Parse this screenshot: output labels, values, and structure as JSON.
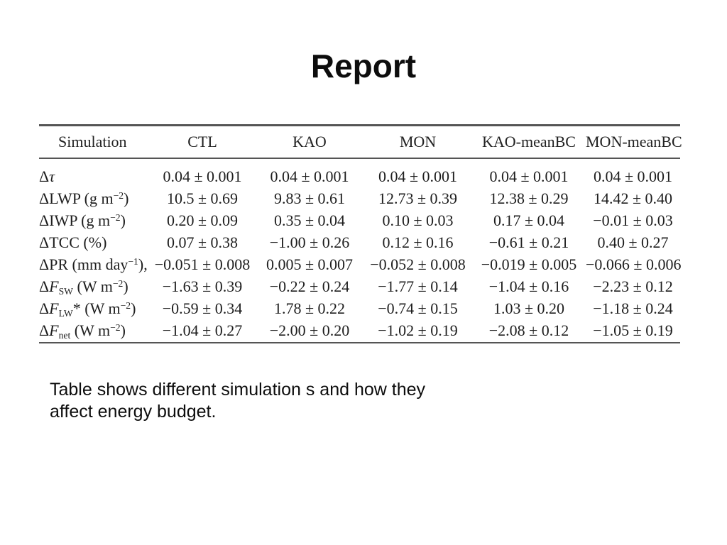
{
  "slide": {
    "title": "Report",
    "caption": {
      "line1": "Table shows different simulation s and how they",
      "line2": "affect energy budget."
    }
  },
  "colors": {
    "background": "#ffffff",
    "text": "#0d0d0d",
    "table_rule": "#555555",
    "table_text": "#1e1e1e"
  },
  "chart_data": {
    "type": "table",
    "columns": [
      "Simulation",
      "CTL",
      "KAO",
      "MON",
      "KAO-meanBC",
      "MON-meanBC"
    ],
    "rows": [
      {
        "label_text": "Δτ",
        "label_segments": [
          {
            "t": "Δ"
          },
          {
            "t": "τ",
            "s": "ital"
          }
        ],
        "values": [
          "0.04 ± 0.001",
          "0.04 ± 0.001",
          "0.04 ± 0.001",
          "0.04 ± 0.001",
          "0.04 ± 0.001"
        ]
      },
      {
        "label_text": "ΔLWP (g m−2)",
        "label_segments": [
          {
            "t": "ΔLWP (g m"
          },
          {
            "t": "−2",
            "s": "sup"
          },
          {
            "t": ")"
          }
        ],
        "values": [
          "10.5 ± 0.69",
          "9.83 ± 0.61",
          "12.73 ± 0.39",
          "12.38 ± 0.29",
          "14.42 ± 0.40"
        ]
      },
      {
        "label_text": "ΔIWP (g m−2)",
        "label_segments": [
          {
            "t": "ΔIWP (g m"
          },
          {
            "t": "−2",
            "s": "sup"
          },
          {
            "t": ")"
          }
        ],
        "values": [
          "0.20 ± 0.09",
          "0.35 ± 0.04",
          "0.10 ± 0.03",
          "0.17 ± 0.04",
          "−0.01 ± 0.03"
        ]
      },
      {
        "label_text": "ΔTCC (%)",
        "label_segments": [
          {
            "t": "ΔTCC (%)"
          }
        ],
        "values": [
          "0.07 ± 0.38",
          "−1.00 ± 0.26",
          "0.12 ± 0.16",
          "−0.61 ± 0.21",
          "0.40 ± 0.27"
        ]
      },
      {
        "label_text": "ΔPR (mm day−1),",
        "label_segments": [
          {
            "t": "ΔPR (mm day"
          },
          {
            "t": "−1",
            "s": "sup"
          },
          {
            "t": "),"
          }
        ],
        "values": [
          "−0.051 ± 0.008",
          "0.005 ± 0.007",
          "−0.052 ± 0.008",
          "−0.019 ± 0.005",
          "−0.066 ± 0.006"
        ]
      },
      {
        "label_text": "ΔF_SW (W m−2)",
        "label_segments": [
          {
            "t": "Δ"
          },
          {
            "t": "F",
            "s": "ital"
          },
          {
            "t": "SW",
            "s": "sub"
          },
          {
            "t": " (W m"
          },
          {
            "t": "−2",
            "s": "sup"
          },
          {
            "t": ")"
          }
        ],
        "values": [
          "−1.63 ± 0.39",
          "−0.22 ± 0.24",
          "−1.77 ± 0.14",
          "−1.04 ± 0.16",
          "−2.23 ± 0.12"
        ]
      },
      {
        "label_text": "ΔF_LW* (W m−2)",
        "label_segments": [
          {
            "t": "Δ"
          },
          {
            "t": "F",
            "s": "ital"
          },
          {
            "t": "LW",
            "s": "sub"
          },
          {
            "t": "* (W m"
          },
          {
            "t": "−2",
            "s": "sup"
          },
          {
            "t": ")"
          }
        ],
        "values": [
          "−0.59 ± 0.34",
          "1.78 ± 0.22",
          "−0.74 ± 0.15",
          "1.03 ± 0.20",
          "−1.18 ± 0.24"
        ]
      },
      {
        "label_text": "ΔF_net (W m−2)",
        "label_segments": [
          {
            "t": "Δ"
          },
          {
            "t": "F",
            "s": "ital"
          },
          {
            "t": "net",
            "s": "sub"
          },
          {
            "t": " (W m"
          },
          {
            "t": "−2",
            "s": "sup"
          },
          {
            "t": ")"
          }
        ],
        "values": [
          "−1.04 ± 0.27",
          "−2.00 ± 0.20",
          "−1.02 ± 0.19",
          "−2.08 ± 0.12",
          "−1.05 ± 0.19"
        ]
      }
    ]
  }
}
